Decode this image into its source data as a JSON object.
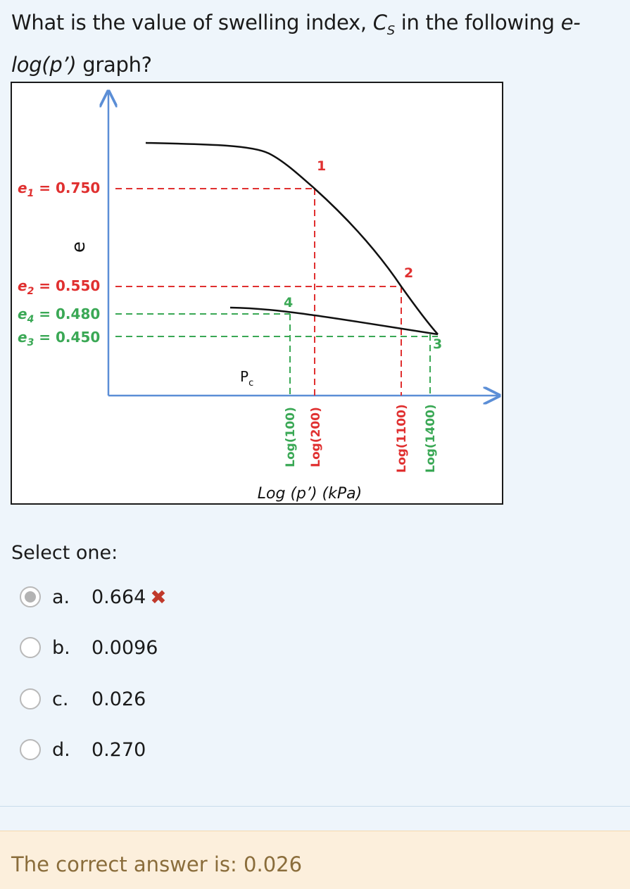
{
  "question": {
    "part1": "What is the value of swelling index, ",
    "c": "C",
    "sub": "S",
    "part2": " in the following ",
    "part3": "e-",
    "part4": "log(p’)",
    "part5": " graph?"
  },
  "figure": {
    "axis_y_label": "e",
    "axis_x_label": "Log (p’) (kPa)",
    "pc_label": "P",
    "pc_sub": "c",
    "void_ratios": [
      {
        "sym": "e",
        "sub": "1",
        "value": " = 0.750",
        "color": "#e03030"
      },
      {
        "sym": "e",
        "sub": "2",
        "value": " = 0.550",
        "color": "#e03030"
      },
      {
        "sym": "e",
        "sub": "4",
        "value": " = 0.480",
        "color": "#3aa855"
      },
      {
        "sym": "e",
        "sub": "3",
        "value": " = 0.450",
        "color": "#3aa855"
      }
    ],
    "points": [
      "1",
      "2",
      "3",
      "4"
    ],
    "x_ticks": [
      "Log(100)",
      "Log(200)",
      "Log(1100)",
      "Log(1400)"
    ],
    "colors": {
      "axis": "#5b8ed6",
      "red": "#e03030",
      "green": "#3aa855",
      "curve": "#111111"
    }
  },
  "select_label": "Select one:",
  "options": [
    {
      "letter": "a.",
      "text": "0.664",
      "checked": true,
      "mark": "✖"
    },
    {
      "letter": "b.",
      "text": "0.0096",
      "checked": false
    },
    {
      "letter": "c.",
      "text": "0.026",
      "checked": false
    },
    {
      "letter": "d.",
      "text": "0.270",
      "checked": false
    }
  ],
  "feedback": "The correct answer is: 0.026"
}
